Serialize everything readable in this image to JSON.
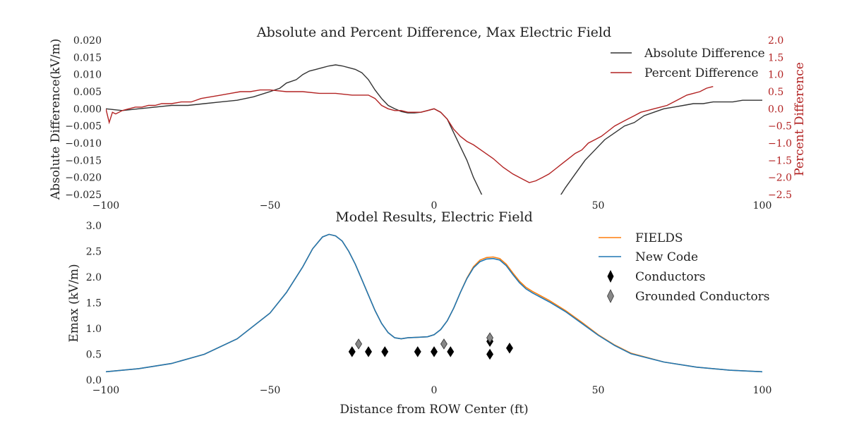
{
  "chart_data": [
    {
      "type": "line",
      "title": "Absolute and Percent Difference, Max Electric Field",
      "xlabel": "",
      "ylabel": "Absolute Difference(kV/m)",
      "y2label": "Percent Difference",
      "xlim": [
        -100,
        100
      ],
      "ylim": [
        -0.025,
        0.02
      ],
      "y2lim": [
        -2.5,
        2.0
      ],
      "x_ticks": [
        "−100",
        "−50",
        "0",
        "50",
        "100"
      ],
      "y_ticks": [
        "0.020",
        "0.015",
        "0.010",
        "0.005",
        "0.000",
        "−0.005",
        "−0.010",
        "−0.015",
        "−0.020",
        "−0.025"
      ],
      "y2_ticks": [
        "2.0",
        "1.5",
        "1.0",
        "0.5",
        "0.0",
        "−0.5",
        "−1.0",
        "−1.5",
        "−2.0",
        "−2.5"
      ],
      "legend_position": "top-right",
      "colors": {
        "absolute": "#333333",
        "percent": "#b22222"
      },
      "series": [
        {
          "name": "Absolute Difference",
          "axis": "left",
          "x": [
            -100,
            -95,
            -90,
            -85,
            -80,
            -75,
            -70,
            -65,
            -60,
            -55,
            -50,
            -47,
            -45,
            -42,
            -40,
            -38,
            -36,
            -34,
            -32,
            -30,
            -28,
            -26,
            -24,
            -22,
            -20,
            -18,
            -16,
            -14,
            -12,
            -10,
            -8,
            -6,
            -4,
            -2,
            0,
            2,
            4,
            6,
            8,
            10,
            12,
            14,
            15,
            38,
            40,
            43,
            46,
            49,
            52,
            55,
            58,
            61,
            64,
            67,
            70,
            73,
            76,
            79,
            82,
            85,
            88,
            91,
            94,
            97,
            100
          ],
          "y": [
            0.0,
            -0.0005,
            0.0,
            0.0005,
            0.001,
            0.001,
            0.0015,
            0.002,
            0.0025,
            0.0035,
            0.005,
            0.006,
            0.0075,
            0.0085,
            0.01,
            0.011,
            0.0115,
            0.012,
            0.0125,
            0.0128,
            0.0125,
            0.012,
            0.0115,
            0.0105,
            0.0085,
            0.0055,
            0.003,
            0.001,
            0.0,
            -0.0008,
            -0.0012,
            -0.0012,
            -0.001,
            -0.0005,
            0.0,
            -0.001,
            -0.003,
            -0.007,
            -0.011,
            -0.015,
            -0.02,
            -0.024,
            -0.026,
            -0.026,
            -0.023,
            -0.019,
            -0.015,
            -0.012,
            -0.009,
            -0.007,
            -0.005,
            -0.004,
            -0.002,
            -0.001,
            0.0,
            0.0005,
            0.001,
            0.0015,
            0.0015,
            0.002,
            0.002,
            0.002,
            0.0025,
            0.0025,
            0.0025
          ]
        },
        {
          "name": "Percent Difference",
          "axis": "right",
          "x": [
            -100,
            -99,
            -98,
            -97,
            -95,
            -93,
            -91,
            -89,
            -87,
            -85,
            -83,
            -80,
            -77,
            -74,
            -71,
            -68,
            -65,
            -62,
            -59,
            -56,
            -53,
            -50,
            -45,
            -40,
            -35,
            -30,
            -25,
            -20,
            -18,
            -16,
            -14,
            -12,
            -10,
            -8,
            -6,
            -4,
            -2,
            0,
            2,
            4,
            6,
            8,
            10,
            12,
            15,
            18,
            21,
            24,
            27,
            29,
            31,
            33,
            35,
            37,
            39,
            41,
            43,
            45,
            47,
            49,
            51,
            53,
            55,
            57,
            59,
            61,
            63,
            65,
            67,
            69,
            71,
            73,
            75,
            77,
            79,
            81,
            83,
            85
          ],
          "y": [
            0.0,
            -0.4,
            -0.1,
            -0.15,
            -0.05,
            0.0,
            0.05,
            0.05,
            0.1,
            0.1,
            0.15,
            0.15,
            0.2,
            0.2,
            0.3,
            0.35,
            0.4,
            0.45,
            0.5,
            0.5,
            0.55,
            0.55,
            0.5,
            0.5,
            0.45,
            0.45,
            0.4,
            0.4,
            0.3,
            0.1,
            0.0,
            -0.05,
            -0.05,
            -0.1,
            -0.1,
            -0.1,
            -0.05,
            0.0,
            -0.1,
            -0.3,
            -0.6,
            -0.8,
            -0.95,
            -1.05,
            -1.25,
            -1.45,
            -1.7,
            -1.9,
            -2.05,
            -2.15,
            -2.1,
            -2.0,
            -1.9,
            -1.75,
            -1.6,
            -1.45,
            -1.3,
            -1.2,
            -1.0,
            -0.9,
            -0.8,
            -0.65,
            -0.5,
            -0.4,
            -0.3,
            -0.2,
            -0.1,
            -0.05,
            0.0,
            0.05,
            0.1,
            0.2,
            0.3,
            0.4,
            0.45,
            0.5,
            0.6,
            0.65
          ]
        }
      ]
    },
    {
      "type": "line",
      "title": "Model Results, Electric Field",
      "xlabel": "Distance from ROW Center (ft)",
      "ylabel": "Emax (kV/m)",
      "xlim": [
        -100,
        100
      ],
      "ylim": [
        0,
        3.0
      ],
      "x_ticks": [
        "−100",
        "−50",
        "0",
        "50",
        "100"
      ],
      "y_ticks": [
        "3.0",
        "2.5",
        "2.0",
        "1.5",
        "1.0",
        "0.5",
        "0.0"
      ],
      "legend_position": "top-right",
      "colors": {
        "fields": "#ff7f0e",
        "new_code": "#1f77b4",
        "conductors": "#000000",
        "grounded": "#888888"
      },
      "series": [
        {
          "name": "FIELDS",
          "x": [
            -100,
            -90,
            -80,
            -70,
            -60,
            -50,
            -45,
            -40,
            -37,
            -34,
            -32,
            -30,
            -28,
            -26,
            -24,
            -22,
            -20,
            -18,
            -16,
            -14,
            -12,
            -10,
            -8,
            -5,
            -2,
            0,
            2,
            4,
            6,
            8,
            10,
            12,
            14,
            16,
            18,
            20,
            22,
            24,
            26,
            28,
            30,
            35,
            40,
            45,
            50,
            55,
            60,
            70,
            80,
            90,
            100
          ],
          "y": [
            0.16,
            0.22,
            0.32,
            0.5,
            0.8,
            1.3,
            1.7,
            2.2,
            2.55,
            2.78,
            2.83,
            2.8,
            2.7,
            2.5,
            2.25,
            1.95,
            1.65,
            1.35,
            1.1,
            0.92,
            0.82,
            0.8,
            0.82,
            0.83,
            0.84,
            0.88,
            0.98,
            1.15,
            1.4,
            1.7,
            1.98,
            2.2,
            2.33,
            2.38,
            2.39,
            2.36,
            2.25,
            2.08,
            1.92,
            1.8,
            1.72,
            1.55,
            1.35,
            1.12,
            0.88,
            0.68,
            0.52,
            0.35,
            0.25,
            0.19,
            0.16
          ]
        },
        {
          "name": "New Code",
          "x": [
            -100,
            -90,
            -80,
            -70,
            -60,
            -50,
            -45,
            -40,
            -37,
            -34,
            -32,
            -30,
            -28,
            -26,
            -24,
            -22,
            -20,
            -18,
            -16,
            -14,
            -12,
            -10,
            -8,
            -5,
            -2,
            0,
            2,
            4,
            6,
            8,
            10,
            12,
            14,
            16,
            18,
            20,
            22,
            24,
            26,
            28,
            30,
            35,
            40,
            45,
            50,
            55,
            60,
            70,
            80,
            90,
            100
          ],
          "y": [
            0.16,
            0.22,
            0.32,
            0.5,
            0.8,
            1.3,
            1.7,
            2.2,
            2.55,
            2.78,
            2.83,
            2.8,
            2.7,
            2.5,
            2.25,
            1.95,
            1.65,
            1.35,
            1.1,
            0.92,
            0.82,
            0.8,
            0.82,
            0.83,
            0.84,
            0.88,
            0.98,
            1.15,
            1.4,
            1.7,
            1.97,
            2.18,
            2.3,
            2.35,
            2.36,
            2.33,
            2.22,
            2.05,
            1.89,
            1.77,
            1.69,
            1.52,
            1.33,
            1.1,
            0.87,
            0.67,
            0.51,
            0.35,
            0.25,
            0.19,
            0.16
          ]
        },
        {
          "name": "Conductors",
          "marker": "diamond",
          "x": [
            -25,
            -20,
            -15,
            -5,
            0,
            5,
            17,
            17,
            23
          ],
          "y": [
            0.55,
            0.55,
            0.55,
            0.55,
            0.55,
            0.55,
            0.75,
            0.5,
            0.62
          ]
        },
        {
          "name": "Grounded Conductors",
          "marker": "diamond",
          "x": [
            -23,
            3,
            17
          ],
          "y": [
            0.7,
            0.7,
            0.82
          ]
        }
      ]
    }
  ]
}
